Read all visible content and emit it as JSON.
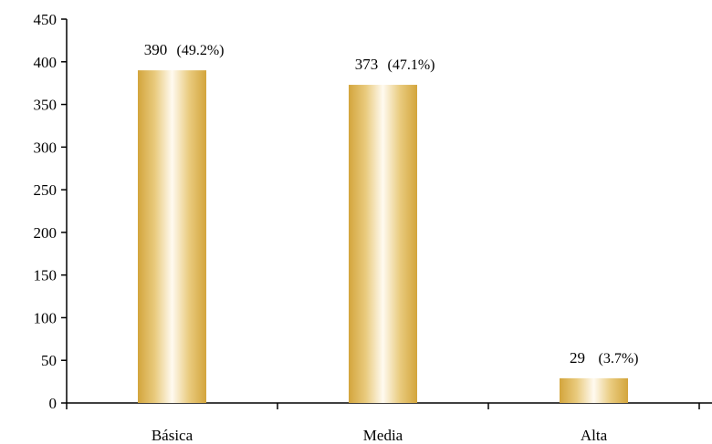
{
  "chart_data": {
    "type": "bar",
    "title": "",
    "xlabel": "",
    "ylabel": "",
    "categories": [
      "Básica",
      "Media",
      "Alta"
    ],
    "values": [
      390,
      373,
      29
    ],
    "value_labels": [
      "390",
      "373",
      "29"
    ],
    "percent_labels": [
      "(49.2%)",
      "(47.1%)",
      "(3.7%)"
    ],
    "ylim": [
      0,
      450
    ],
    "yticks": [
      0,
      50,
      100,
      150,
      200,
      250,
      300,
      350,
      400,
      450
    ],
    "ytick_labels": [
      "0",
      "50",
      "100",
      "150",
      "200",
      "250",
      "300",
      "350",
      "400",
      "450"
    ],
    "grid": false,
    "legend": "none",
    "colors": {
      "bar_edge": "#d3a53c",
      "bar_mid": "#e9cb7e",
      "bar_highlight": "#fffaf0",
      "axis": "#000000"
    }
  }
}
